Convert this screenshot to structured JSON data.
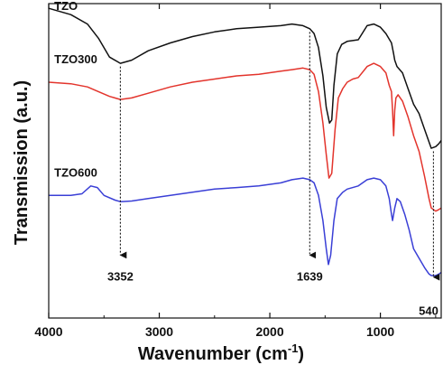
{
  "chart_data": {
    "type": "line",
    "xlabel": "Wavenumber (cm",
    "xlabel_sup": "-1",
    "xlabel_close": ")",
    "ylabel": "Transmission (a.u.)",
    "xlim": [
      4000,
      450
    ],
    "x_reversed": true,
    "grid": false,
    "x_ticks": [
      4000,
      3000,
      2000,
      1000
    ],
    "x_tick_labels": [
      "4000",
      "3000",
      "2000",
      "1000"
    ],
    "y_ticks_shown": false,
    "ylim": [
      0,
      1
    ],
    "series": [
      {
        "name": "TZO",
        "color": "#111111",
        "points": [
          [
            4000,
            0.985
          ],
          [
            3800,
            0.965
          ],
          [
            3650,
            0.935
          ],
          [
            3550,
            0.89
          ],
          [
            3450,
            0.83
          ],
          [
            3352,
            0.81
          ],
          [
            3250,
            0.82
          ],
          [
            3100,
            0.85
          ],
          [
            2900,
            0.875
          ],
          [
            2700,
            0.895
          ],
          [
            2500,
            0.91
          ],
          [
            2300,
            0.92
          ],
          [
            2100,
            0.925
          ],
          [
            1900,
            0.93
          ],
          [
            1800,
            0.935
          ],
          [
            1700,
            0.93
          ],
          [
            1639,
            0.92
          ],
          [
            1600,
            0.905
          ],
          [
            1560,
            0.86
          ],
          [
            1520,
            0.77
          ],
          [
            1490,
            0.67
          ],
          [
            1460,
            0.62
          ],
          [
            1440,
            0.63
          ],
          [
            1420,
            0.74
          ],
          [
            1390,
            0.84
          ],
          [
            1350,
            0.87
          ],
          [
            1300,
            0.88
          ],
          [
            1200,
            0.885
          ],
          [
            1120,
            0.93
          ],
          [
            1060,
            0.935
          ],
          [
            1000,
            0.925
          ],
          [
            950,
            0.905
          ],
          [
            900,
            0.875
          ],
          [
            880,
            0.84
          ],
          [
            870,
            0.82
          ],
          [
            850,
            0.8
          ],
          [
            800,
            0.78
          ],
          [
            750,
            0.73
          ],
          [
            700,
            0.68
          ],
          [
            650,
            0.65
          ],
          [
            600,
            0.6
          ],
          [
            560,
            0.56
          ],
          [
            540,
            0.54
          ],
          [
            500,
            0.545
          ],
          [
            470,
            0.555
          ],
          [
            450,
            0.565
          ]
        ]
      },
      {
        "name": "TZO300",
        "color": "#e3342c",
        "points": [
          [
            4000,
            0.75
          ],
          [
            3800,
            0.745
          ],
          [
            3650,
            0.735
          ],
          [
            3550,
            0.72
          ],
          [
            3450,
            0.705
          ],
          [
            3352,
            0.695
          ],
          [
            3250,
            0.7
          ],
          [
            3100,
            0.715
          ],
          [
            2900,
            0.735
          ],
          [
            2700,
            0.75
          ],
          [
            2500,
            0.76
          ],
          [
            2300,
            0.77
          ],
          [
            2100,
            0.775
          ],
          [
            1900,
            0.785
          ],
          [
            1800,
            0.79
          ],
          [
            1700,
            0.795
          ],
          [
            1639,
            0.79
          ],
          [
            1600,
            0.775
          ],
          [
            1560,
            0.72
          ],
          [
            1520,
            0.62
          ],
          [
            1490,
            0.52
          ],
          [
            1465,
            0.445
          ],
          [
            1440,
            0.46
          ],
          [
            1410,
            0.6
          ],
          [
            1380,
            0.7
          ],
          [
            1340,
            0.73
          ],
          [
            1300,
            0.75
          ],
          [
            1250,
            0.76
          ],
          [
            1200,
            0.765
          ],
          [
            1120,
            0.8
          ],
          [
            1060,
            0.81
          ],
          [
            1000,
            0.8
          ],
          [
            950,
            0.78
          ],
          [
            920,
            0.74
          ],
          [
            900,
            0.72
          ],
          [
            890,
            0.66
          ],
          [
            880,
            0.58
          ],
          [
            870,
            0.66
          ],
          [
            860,
            0.7
          ],
          [
            840,
            0.71
          ],
          [
            800,
            0.69
          ],
          [
            750,
            0.64
          ],
          [
            700,
            0.58
          ],
          [
            650,
            0.53
          ],
          [
            600,
            0.45
          ],
          [
            560,
            0.38
          ],
          [
            540,
            0.35
          ],
          [
            500,
            0.34
          ],
          [
            470,
            0.345
          ],
          [
            450,
            0.35
          ]
        ]
      },
      {
        "name": "TZO600",
        "color": "#3a3fd6",
        "points": [
          [
            4000,
            0.39
          ],
          [
            3800,
            0.39
          ],
          [
            3700,
            0.395
          ],
          [
            3620,
            0.42
          ],
          [
            3560,
            0.415
          ],
          [
            3500,
            0.39
          ],
          [
            3400,
            0.375
          ],
          [
            3352,
            0.37
          ],
          [
            3250,
            0.372
          ],
          [
            3100,
            0.38
          ],
          [
            2900,
            0.39
          ],
          [
            2700,
            0.4
          ],
          [
            2500,
            0.41
          ],
          [
            2300,
            0.415
          ],
          [
            2100,
            0.42
          ],
          [
            1900,
            0.43
          ],
          [
            1800,
            0.44
          ],
          [
            1700,
            0.445
          ],
          [
            1639,
            0.44
          ],
          [
            1600,
            0.43
          ],
          [
            1560,
            0.39
          ],
          [
            1520,
            0.31
          ],
          [
            1490,
            0.22
          ],
          [
            1470,
            0.17
          ],
          [
            1450,
            0.2
          ],
          [
            1420,
            0.31
          ],
          [
            1390,
            0.38
          ],
          [
            1340,
            0.4
          ],
          [
            1300,
            0.41
          ],
          [
            1200,
            0.42
          ],
          [
            1120,
            0.44
          ],
          [
            1060,
            0.445
          ],
          [
            1000,
            0.44
          ],
          [
            950,
            0.42
          ],
          [
            920,
            0.38
          ],
          [
            900,
            0.33
          ],
          [
            890,
            0.31
          ],
          [
            870,
            0.35
          ],
          [
            850,
            0.38
          ],
          [
            820,
            0.37
          ],
          [
            780,
            0.33
          ],
          [
            740,
            0.28
          ],
          [
            700,
            0.22
          ],
          [
            650,
            0.19
          ],
          [
            600,
            0.16
          ],
          [
            560,
            0.14
          ],
          [
            540,
            0.135
          ],
          [
            500,
            0.135
          ],
          [
            470,
            0.14
          ],
          [
            450,
            0.145
          ]
        ]
      }
    ],
    "series_labels": [
      {
        "text": "TZO",
        "series": 0,
        "x": 3950,
        "y": 0.98
      },
      {
        "text": "TZO300",
        "series": 1,
        "x": 3950,
        "y": 0.81
      },
      {
        "text": "TZO600",
        "series": 2,
        "x": 3950,
        "y": 0.45
      }
    ],
    "annotations": [
      {
        "label": "3352",
        "x": 3352,
        "y_start": 0.8,
        "y_end": 0.2,
        "label_y": 0.16
      },
      {
        "label": "1639",
        "x": 1639,
        "y_start": 0.91,
        "y_end": 0.2,
        "label_y": 0.16
      },
      {
        "label": "540",
        "x": 520,
        "y_start": 0.53,
        "y_end": 0.13,
        "label_y": 0.05
      }
    ]
  }
}
